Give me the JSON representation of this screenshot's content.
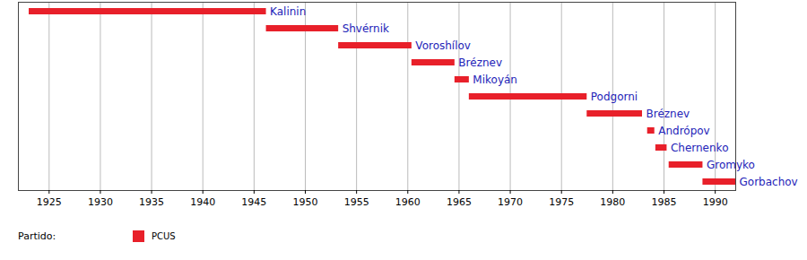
{
  "chart_data": {
    "type": "bar",
    "orientation": "horizontal",
    "categories": [
      "Kalinin",
      "Shvérnik",
      "Voroshílov",
      "Bréznev",
      "Mikoyán",
      "Podgorni",
      "Bréznev",
      "Andrópov",
      "Chernenko",
      "Gromyko",
      "Gorbachov"
    ],
    "series": [
      {
        "name": "PCUS",
        "color": "#e8202a",
        "start": [
          1923.05,
          1946.2,
          1953.25,
          1960.4,
          1964.6,
          1966.0,
          1977.5,
          1983.4,
          1984.2,
          1985.5,
          1988.8
        ],
        "end": [
          1946.2,
          1953.25,
          1960.4,
          1964.6,
          1966.0,
          1977.5,
          1982.9,
          1984.1,
          1985.3,
          1988.8,
          1992.0
        ]
      }
    ],
    "legend_title": "Partido:",
    "legend": "bottom-left",
    "xlim": [
      1922,
      1992
    ],
    "xticks": [
      1925,
      1930,
      1935,
      1940,
      1945,
      1950,
      1955,
      1960,
      1965,
      1970,
      1975,
      1980,
      1985,
      1990
    ],
    "tick_labels": "x",
    "grid": true,
    "data_labels": true
  }
}
